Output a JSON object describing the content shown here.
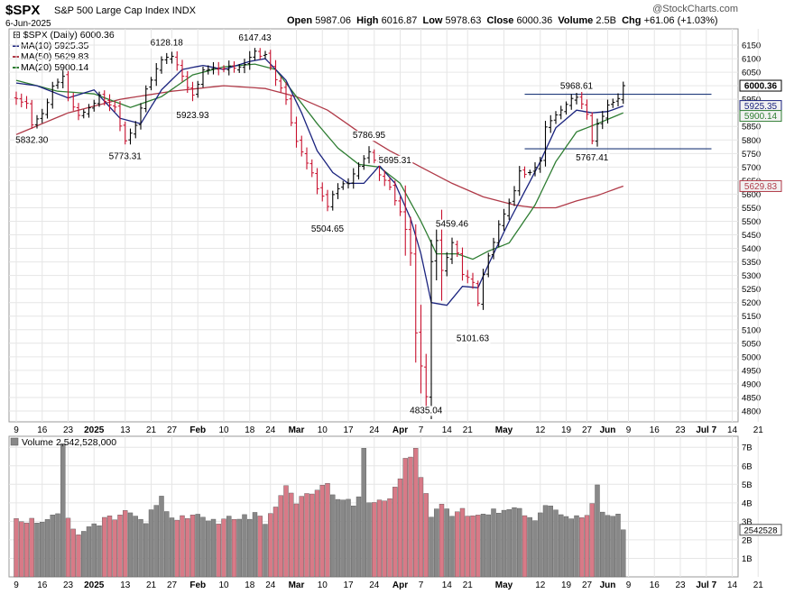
{
  "header": {
    "symbol": "$SPX",
    "name": "S&P 500 Large Cap Index",
    "exchange": "INDX",
    "date": "6-Jun-2025",
    "watermark": "@StockCharts.com",
    "open_label": "Open",
    "open": "5987.06",
    "high_label": "High",
    "high": "6016.87",
    "low_label": "Low",
    "low": "5978.63",
    "close_label": "Close",
    "close": "6000.36",
    "volume_label": "Volume",
    "volume": "2.5B",
    "chg_label": "Chg",
    "chg": "+61.06 (+1.03%)"
  },
  "colors": {
    "up": "#000000",
    "down": "#c8102e",
    "ma10": "#1a237e",
    "ma50": "#b03a48",
    "ma20": "#2e7d32",
    "level": "#1f3a7a",
    "grid": "#e6e6e6",
    "vol_up": "#888888",
    "vol_down": "#d87a87"
  },
  "chart_data": {
    "type": "ohlc",
    "title": "$SPX S&P 500 Large Cap Index INDX",
    "ylim": [
      4760,
      6210
    ],
    "y_ticks": [
      4800,
      4850,
      4900,
      4950,
      5000,
      5050,
      5100,
      5150,
      5200,
      5250,
      5300,
      5350,
      5400,
      5450,
      5500,
      5550,
      5600,
      5650,
      5700,
      5750,
      5800,
      5850,
      5900,
      5950,
      6000,
      6050,
      6100,
      6150
    ],
    "series_legend": [
      {
        "key": "price",
        "label": "$SPX (Daily) 6000.36",
        "icon": "bar-icon"
      },
      {
        "key": "ma10",
        "label": "MA(10) 5925.35"
      },
      {
        "key": "ma50",
        "label": "MA(50) 5629.83"
      },
      {
        "key": "ma20",
        "label": "MA(20) 5900.14"
      }
    ],
    "x_ticks": [
      {
        "day": 0,
        "label": "9"
      },
      {
        "day": 5,
        "label": "16"
      },
      {
        "day": 10,
        "label": "23"
      },
      {
        "day": 15,
        "label": "2025",
        "bold": true
      },
      {
        "day": 21,
        "label": "13"
      },
      {
        "day": 26,
        "label": "21"
      },
      {
        "day": 30,
        "label": "27"
      },
      {
        "day": 35,
        "label": "Feb",
        "bold": true
      },
      {
        "day": 40,
        "label": "10"
      },
      {
        "day": 45,
        "label": "18"
      },
      {
        "day": 49,
        "label": "24"
      },
      {
        "day": 54,
        "label": "Mar",
        "bold": true
      },
      {
        "day": 59,
        "label": "10"
      },
      {
        "day": 64,
        "label": "17"
      },
      {
        "day": 69,
        "label": "24"
      },
      {
        "day": 74,
        "label": "Apr",
        "bold": true
      },
      {
        "day": 78,
        "label": "7"
      },
      {
        "day": 83,
        "label": "14"
      },
      {
        "day": 87,
        "label": "21"
      },
      {
        "day": 94,
        "label": "May",
        "bold": true
      },
      {
        "day": 101,
        "label": "12"
      },
      {
        "day": 106,
        "label": "19"
      },
      {
        "day": 110,
        "label": "27"
      },
      {
        "day": 114,
        "label": "Jun",
        "bold": true
      },
      {
        "day": 118,
        "label": "9"
      },
      {
        "day": 123,
        "label": "16"
      },
      {
        "day": 128,
        "label": "23"
      },
      {
        "day": 133,
        "label": "Jul 7",
        "bold": true
      },
      {
        "day": 138,
        "label": "14"
      },
      {
        "day": 143,
        "label": "21"
      }
    ],
    "annotations": [
      {
        "day": 3,
        "value": 5832.3,
        "label": "5832.30",
        "pos": "below"
      },
      {
        "day": 21,
        "value": 5773.31,
        "label": "5773.31",
        "pos": "below"
      },
      {
        "day": 29,
        "value": 6128.18,
        "label": "6128.18",
        "pos": "above"
      },
      {
        "day": 34,
        "value": 5923.93,
        "label": "5923.93",
        "pos": "below"
      },
      {
        "day": 46,
        "value": 6147.43,
        "label": "6147.43",
        "pos": "above"
      },
      {
        "day": 60,
        "value": 5504.65,
        "label": "5504.65",
        "pos": "below"
      },
      {
        "day": 68,
        "value": 5786.95,
        "label": "5786.95",
        "pos": "above"
      },
      {
        "day": 73,
        "value": 5695.31,
        "label": "5695.31",
        "pos": "above"
      },
      {
        "day": 79,
        "value": 4835.04,
        "label": "4835.04",
        "pos": "below"
      },
      {
        "day": 84,
        "value": 5459.46,
        "label": "5459.46",
        "pos": "above"
      },
      {
        "day": 88,
        "value": 5101.63,
        "label": "5101.63",
        "pos": "below"
      },
      {
        "day": 108,
        "value": 5968.61,
        "label": "5968.61",
        "pos": "above"
      },
      {
        "day": 111,
        "value": 5767.41,
        "label": "5767.41",
        "pos": "below"
      }
    ],
    "levels": [
      {
        "value": 5968.61,
        "from_day": 98,
        "to_day": 134
      },
      {
        "value": 5767.41,
        "from_day": 98,
        "to_day": 134
      }
    ],
    "last_value_labels": [
      {
        "value": 6000.36,
        "label": "6000.36",
        "key": "price"
      },
      {
        "value": 5925.35,
        "label": "5925.35",
        "key": "ma10"
      },
      {
        "value": 5900.14,
        "label": "5900.14",
        "key": "ma20"
      },
      {
        "value": 5629.83,
        "label": "5629.83",
        "key": "ma50"
      }
    ],
    "ma_anchors": {
      "ma10": [
        [
          0,
          6010
        ],
        [
          4,
          6000
        ],
        [
          10,
          5955
        ],
        [
          15,
          5985
        ],
        [
          20,
          5880
        ],
        [
          24,
          5860
        ],
        [
          28,
          5985
        ],
        [
          32,
          6060
        ],
        [
          36,
          6075
        ],
        [
          40,
          6060
        ],
        [
          45,
          6090
        ],
        [
          48,
          6100
        ],
        [
          52,
          6020
        ],
        [
          55,
          5900
        ],
        [
          58,
          5760
        ],
        [
          61,
          5680
        ],
        [
          64,
          5640
        ],
        [
          67,
          5640
        ],
        [
          70,
          5705
        ],
        [
          73,
          5640
        ],
        [
          76,
          5510
        ],
        [
          78,
          5380
        ],
        [
          80,
          5200
        ],
        [
          83,
          5190
        ],
        [
          86,
          5260
        ],
        [
          89,
          5255
        ],
        [
          91,
          5340
        ],
        [
          95,
          5500
        ],
        [
          98,
          5610
        ],
        [
          101,
          5720
        ],
        [
          104,
          5845
        ],
        [
          108,
          5910
        ],
        [
          111,
          5900
        ],
        [
          114,
          5905
        ],
        [
          117,
          5925.35
        ]
      ],
      "ma20": [
        [
          0,
          6020
        ],
        [
          8,
          5980
        ],
        [
          15,
          5970
        ],
        [
          22,
          5920
        ],
        [
          28,
          5960
        ],
        [
          34,
          6040
        ],
        [
          40,
          6070
        ],
        [
          46,
          6080
        ],
        [
          50,
          6060
        ],
        [
          54,
          5960
        ],
        [
          58,
          5860
        ],
        [
          62,
          5770
        ],
        [
          66,
          5710
        ],
        [
          70,
          5700
        ],
        [
          74,
          5640
        ],
        [
          78,
          5500
        ],
        [
          81,
          5380
        ],
        [
          85,
          5380
        ],
        [
          88,
          5360
        ],
        [
          91,
          5390
        ],
        [
          95,
          5420
        ],
        [
          100,
          5560
        ],
        [
          104,
          5720
        ],
        [
          108,
          5830
        ],
        [
          112,
          5860
        ],
        [
          117,
          5900.14
        ]
      ],
      "ma50": [
        [
          0,
          5820
        ],
        [
          10,
          5900
        ],
        [
          20,
          5950
        ],
        [
          30,
          5980
        ],
        [
          40,
          6000
        ],
        [
          48,
          5990
        ],
        [
          54,
          5960
        ],
        [
          60,
          5910
        ],
        [
          66,
          5830
        ],
        [
          72,
          5760
        ],
        [
          78,
          5700
        ],
        [
          84,
          5640
        ],
        [
          90,
          5590
        ],
        [
          96,
          5560
        ],
        [
          100,
          5550
        ],
        [
          104,
          5550
        ],
        [
          108,
          5575
        ],
        [
          112,
          5595
        ],
        [
          117,
          5629.83
        ]
      ]
    },
    "price_anchors": [
      [
        0,
        5955
      ],
      [
        2,
        5930
      ],
      [
        3,
        5850
      ],
      [
        5,
        5900
      ],
      [
        7,
        5990
      ],
      [
        9,
        6030
      ],
      [
        10,
        5960
      ],
      [
        12,
        5890
      ],
      [
        14,
        5920
      ],
      [
        16,
        5960
      ],
      [
        19,
        5920
      ],
      [
        21,
        5800
      ],
      [
        23,
        5860
      ],
      [
        25,
        5980
      ],
      [
        28,
        6100
      ],
      [
        30,
        6110
      ],
      [
        32,
        6040
      ],
      [
        34,
        5960
      ],
      [
        36,
        6060
      ],
      [
        40,
        6060
      ],
      [
        44,
        6080
      ],
      [
        46,
        6120
      ],
      [
        48,
        6110
      ],
      [
        50,
        6030
      ],
      [
        52,
        5940
      ],
      [
        54,
        5800
      ],
      [
        56,
        5720
      ],
      [
        58,
        5620
      ],
      [
        60,
        5560
      ],
      [
        62,
        5620
      ],
      [
        64,
        5640
      ],
      [
        66,
        5700
      ],
      [
        68,
        5760
      ],
      [
        70,
        5680
      ],
      [
        72,
        5620
      ],
      [
        74,
        5540
      ],
      [
        76,
        5390
      ],
      [
        77,
        5080
      ],
      [
        78,
        4960
      ],
      [
        79,
        4860
      ],
      [
        80,
        5350
      ],
      [
        81,
        5430
      ],
      [
        82,
        5310
      ],
      [
        84,
        5420
      ],
      [
        85,
        5390
      ],
      [
        86,
        5300
      ],
      [
        88,
        5280
      ],
      [
        89,
        5200
      ],
      [
        90,
        5300
      ],
      [
        91,
        5370
      ],
      [
        93,
        5480
      ],
      [
        95,
        5560
      ],
      [
        97,
        5680
      ],
      [
        99,
        5680
      ],
      [
        101,
        5720
      ],
      [
        102,
        5850
      ],
      [
        104,
        5890
      ],
      [
        106,
        5940
      ],
      [
        108,
        5960
      ],
      [
        110,
        5890
      ],
      [
        111,
        5800
      ],
      [
        112,
        5860
      ],
      [
        114,
        5930
      ],
      [
        116,
        5950
      ],
      [
        117,
        6000.36
      ]
    ],
    "volume": {
      "title": "Volume",
      "current": "2,542,528,000",
      "current_value": 2542528000,
      "last_label": "2542528",
      "ylim": [
        0,
        7.4
      ],
      "y_ticks": [
        {
          "v": 1,
          "label": "1B"
        },
        {
          "v": 2,
          "label": "2B"
        },
        {
          "v": 3,
          "label": "3B"
        },
        {
          "v": 4,
          "label": "4B"
        },
        {
          "v": 5,
          "label": "5B"
        },
        {
          "v": 6,
          "label": "6B"
        },
        {
          "v": 7,
          "label": "7B"
        }
      ],
      "anchors_billions": [
        [
          0,
          3.1
        ],
        [
          5,
          3.0
        ],
        [
          8,
          3.3
        ],
        [
          9,
          7.1
        ],
        [
          10,
          3.0
        ],
        [
          12,
          2.4
        ],
        [
          15,
          2.7
        ],
        [
          18,
          3.3
        ],
        [
          20,
          3.2
        ],
        [
          22,
          3.6
        ],
        [
          25,
          3.0
        ],
        [
          28,
          4.3
        ],
        [
          30,
          3.0
        ],
        [
          35,
          3.3
        ],
        [
          38,
          3.0
        ],
        [
          42,
          3.2
        ],
        [
          46,
          3.3
        ],
        [
          48,
          3.0
        ],
        [
          51,
          4.2
        ],
        [
          52,
          4.9
        ],
        [
          54,
          4.1
        ],
        [
          57,
          4.6
        ],
        [
          60,
          5.0
        ],
        [
          62,
          4.0
        ],
        [
          65,
          4.0
        ],
        [
          66,
          4.2
        ],
        [
          67,
          7.1
        ],
        [
          68,
          4.0
        ],
        [
          70,
          4.1
        ],
        [
          72,
          4.2
        ],
        [
          74,
          5.4
        ],
        [
          75,
          6.6
        ],
        [
          76,
          6.4
        ],
        [
          77,
          7.0
        ],
        [
          78,
          5.2
        ],
        [
          79,
          4.4
        ],
        [
          80,
          3.3
        ],
        [
          82,
          4.1
        ],
        [
          84,
          3.3
        ],
        [
          86,
          3.6
        ],
        [
          88,
          3.2
        ],
        [
          90,
          3.3
        ],
        [
          92,
          3.6
        ],
        [
          94,
          3.4
        ],
        [
          96,
          3.9
        ],
        [
          98,
          3.5
        ],
        [
          100,
          3.1
        ],
        [
          102,
          3.9
        ],
        [
          104,
          3.6
        ],
        [
          106,
          3.2
        ],
        [
          108,
          3.4
        ],
        [
          110,
          3.3
        ],
        [
          112,
          5.0
        ],
        [
          113,
          3.4
        ],
        [
          114,
          3.3
        ],
        [
          116,
          3.3
        ],
        [
          117,
          2.54
        ]
      ]
    },
    "n_days": 118,
    "grid": true
  }
}
